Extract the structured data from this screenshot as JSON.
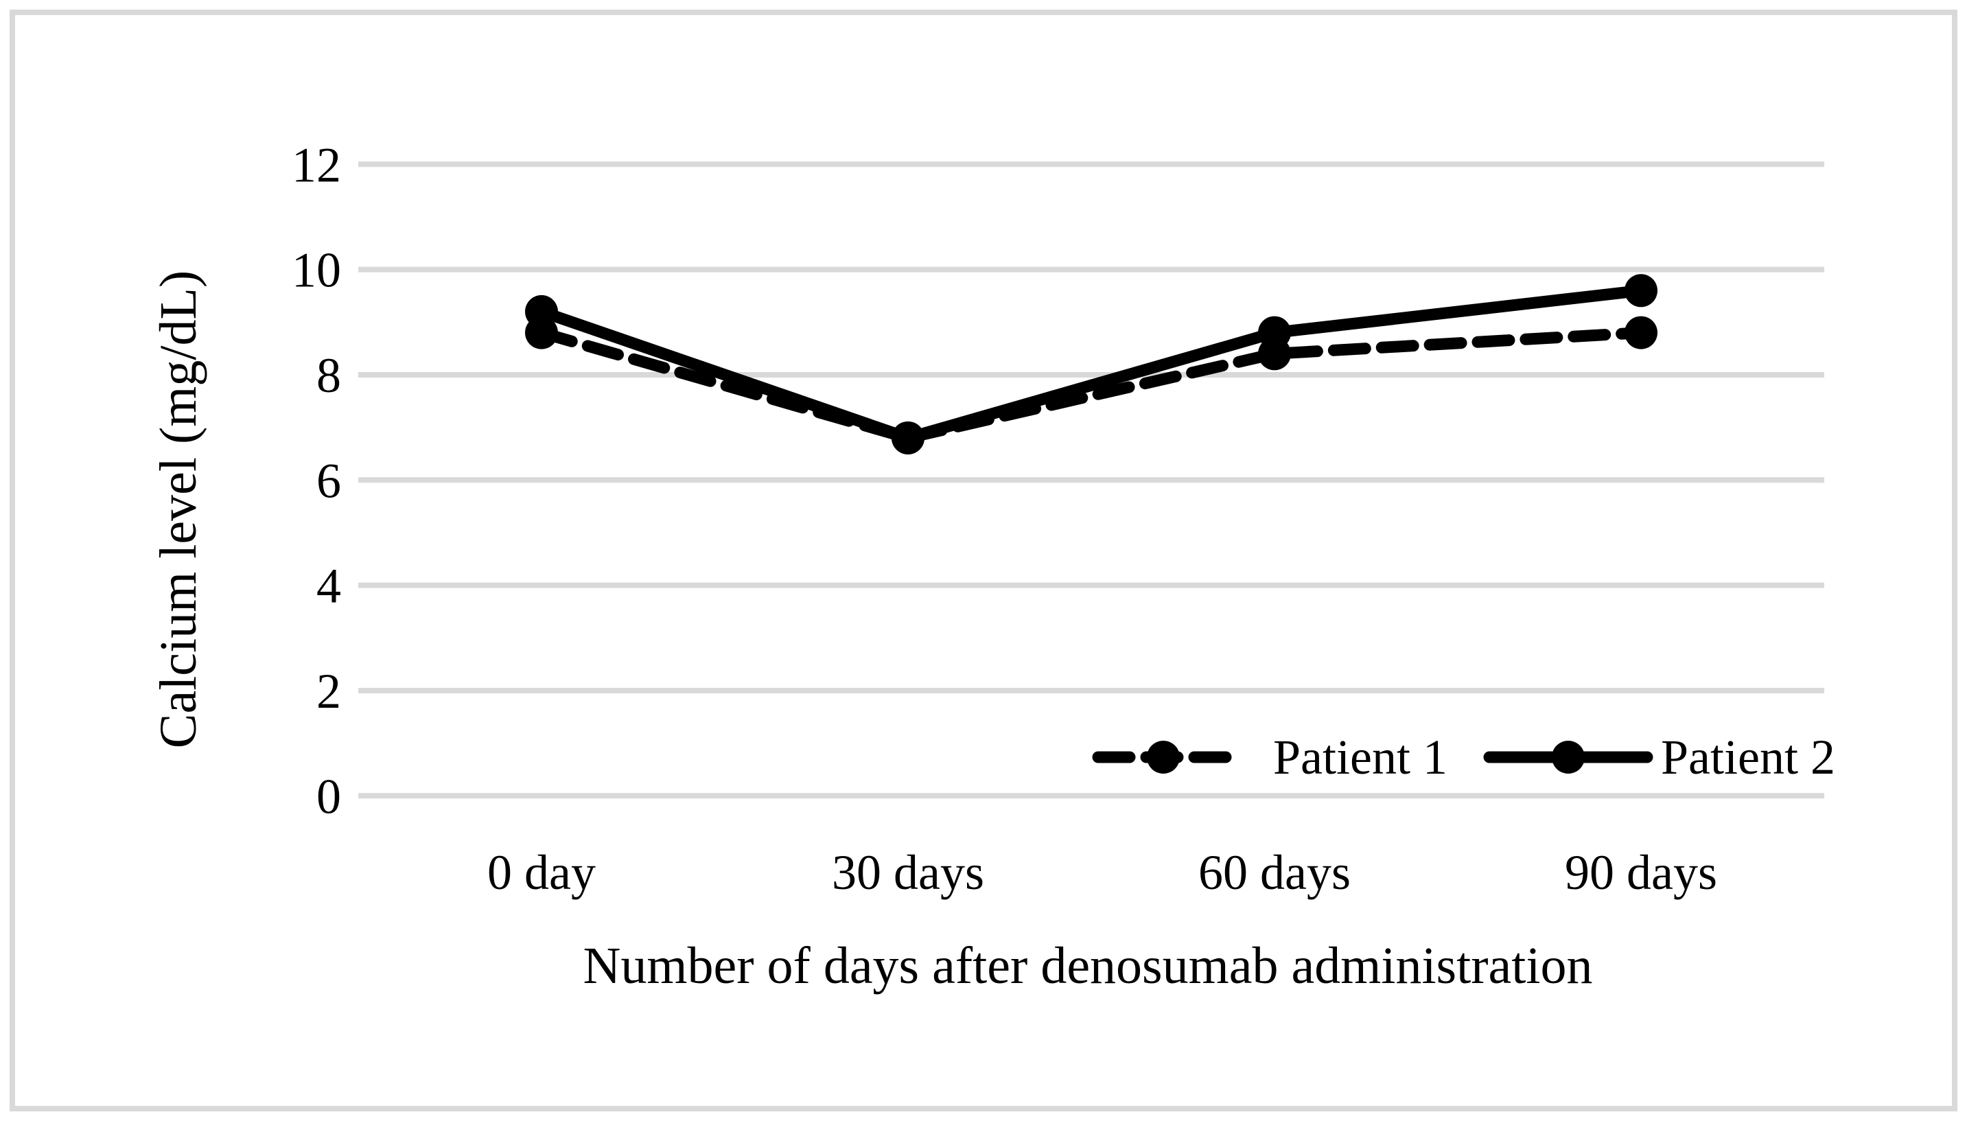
{
  "figure": {
    "background_color": "#ffffff",
    "border_color": "#d9d9d9"
  },
  "chart_data": {
    "type": "line",
    "title": "",
    "categories": [
      "0 day",
      "30 days",
      "60 days",
      "90 days"
    ],
    "series": [
      {
        "name": "Patient 1",
        "values": [
          8.8,
          6.8,
          8.4,
          8.8
        ],
        "line_style": "dashed",
        "marker": "circle",
        "color": "#000000"
      },
      {
        "name": "Patient 2",
        "values": [
          9.2,
          6.8,
          8.8,
          9.6
        ],
        "line_style": "solid",
        "marker": "circle",
        "color": "#000000"
      }
    ],
    "xlabel": "Number of days after denosumab administration",
    "ylabel": "Calcium level (mg/dL)",
    "ylim": [
      0,
      12
    ],
    "yticks": [
      0,
      2,
      4,
      6,
      8,
      10,
      12
    ],
    "grid": true,
    "gridline_color": "#d9d9d9",
    "legend_position": "inside-bottom-right"
  }
}
